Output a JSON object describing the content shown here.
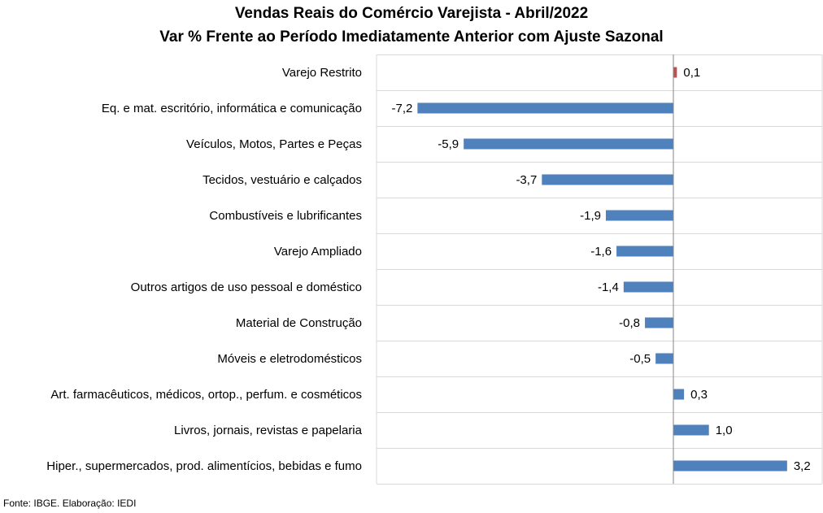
{
  "title_line1": "Vendas Reais do Comércio Varejista - Abril/2022",
  "title_line2": "Var % Frente ao Período Imediatamente Anterior com Ajuste Sazonal",
  "footer": "Fonte: IBGE. Elaboração: IEDI",
  "colors": {
    "negative": "#4f81bd",
    "positive": "#4f81bd",
    "highlight": "#c0504d",
    "grid": "#d9d9d9",
    "axis": "#868686"
  },
  "chart_data": {
    "type": "bar",
    "orientation": "horizontal",
    "title": "Vendas Reais do Comércio Varejista - Abril/2022",
    "subtitle": "Var % Frente ao Período Imediatamente Anterior com Ajuste Sazonal",
    "categories": [
      "Varejo Restrito",
      "Eq. e mat. escritório, informática e comunicação",
      "Veículos, Motos, Partes e Peças",
      "Tecidos, vestuário e calçados",
      "Combustíveis e lubrificantes",
      "Varejo Ampliado",
      "Outros artigos de uso pessoal e doméstico",
      "Material de Construção",
      "Móveis e eletrodomésticos",
      "Art. farmacêuticos, médicos, ortop., perfum. e cosméticos",
      "Livros, jornais, revistas e papelaria",
      "Hiper., supermercados, prod. alimentícios, bebidas e fumo"
    ],
    "values": [
      0.1,
      -7.2,
      -5.9,
      -3.7,
      -1.9,
      -1.6,
      -1.4,
      -0.8,
      -0.5,
      0.3,
      1.0,
      3.2
    ],
    "value_labels": [
      "0,1",
      "-7,2",
      "-5,9",
      "-3,7",
      "-1,9",
      "-1,6",
      "-1,4",
      "-0,8",
      "-0,5",
      "0,3",
      "1,0",
      "3,2"
    ],
    "highlight_index": 0,
    "xlim": [
      -8.5,
      4.5
    ],
    "grid": true,
    "legend": "none"
  }
}
